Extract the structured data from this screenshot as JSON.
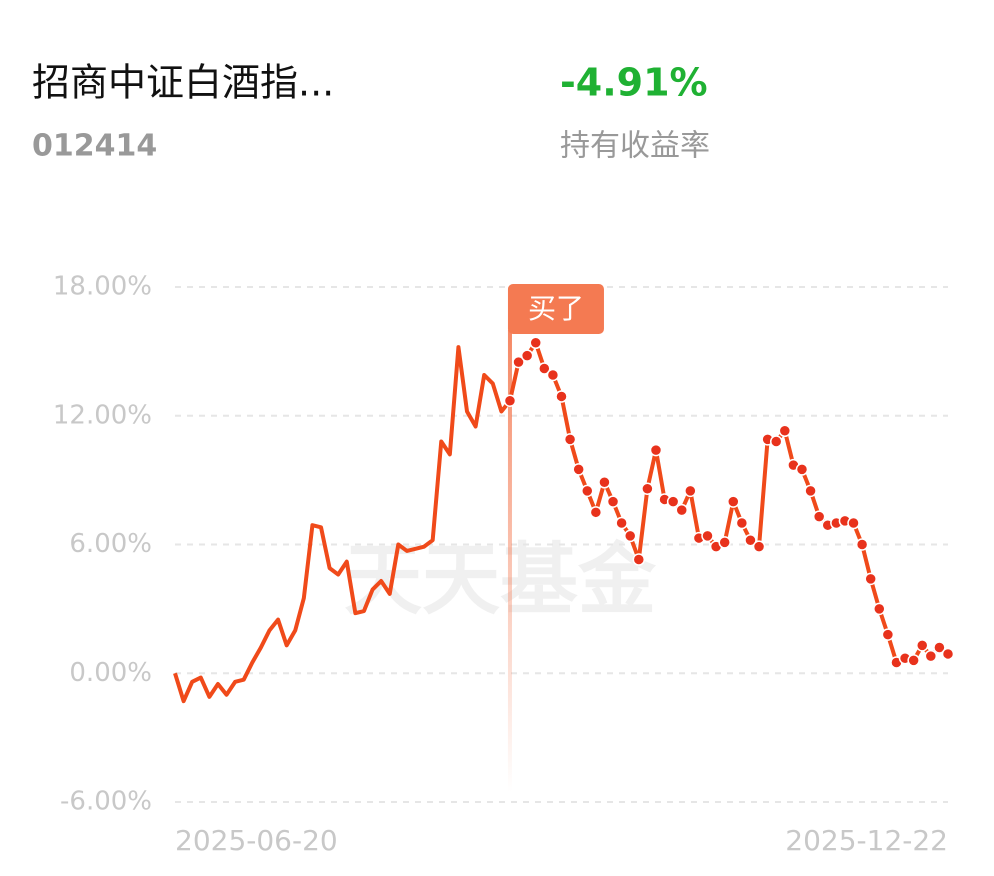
{
  "header": {
    "name": "招商中证白酒指...",
    "code": "012414",
    "return": "-4.91%",
    "return_label": "持有收益率"
  },
  "chart_data": {
    "type": "line",
    "watermark": "天天基金",
    "categories": [
      "2025-06-20",
      null,
      null,
      null,
      null,
      null,
      null,
      null,
      null,
      null,
      null,
      null,
      null,
      null,
      null,
      null,
      null,
      null,
      null,
      null,
      null,
      null,
      null,
      null,
      null,
      null,
      null,
      null,
      null,
      null,
      null,
      null,
      null,
      null,
      null,
      null,
      null,
      null,
      null,
      null,
      null,
      null,
      null,
      null,
      null,
      null,
      null,
      null,
      null,
      null,
      null,
      null,
      null,
      null,
      null,
      null,
      null,
      null,
      null,
      null,
      null,
      null,
      null,
      null,
      null,
      null,
      null,
      null,
      null,
      null,
      null,
      null,
      null,
      null,
      null,
      null,
      null,
      null,
      null,
      null,
      null,
      null,
      null,
      null,
      null,
      null,
      null,
      null,
      null,
      null,
      "2025-12-22"
    ],
    "series": [
      {
        "color": "#f04a1a",
        "values": [
          0,
          -1.3,
          -0.4,
          -0.2,
          -1.1,
          -0.5,
          -1.0,
          -0.4,
          -0.3,
          0.5,
          1.2,
          2.0,
          2.5,
          1.3,
          2.0,
          3.5,
          6.9,
          6.8,
          4.9,
          4.6,
          5.2,
          2.8,
          2.9,
          3.9,
          4.3,
          3.7,
          6.0,
          5.7,
          5.8,
          5.9,
          6.2,
          10.8,
          10.2,
          15.2,
          12.2,
          11.5,
          13.9,
          13.5,
          12.2,
          12.7,
          14.5,
          14.8,
          15.4,
          14.2,
          13.9,
          12.9,
          10.9,
          9.5,
          8.5,
          7.5,
          8.9,
          8.0,
          7.0,
          6.4,
          5.3,
          8.6,
          10.4,
          8.1,
          8.0,
          7.6,
          8.5,
          6.3,
          6.4,
          5.9,
          6.1,
          8.0,
          7.0,
          6.2,
          5.9,
          10.9,
          10.8,
          11.3,
          9.7,
          9.5,
          8.5,
          7.3,
          6.9,
          7.0,
          7.1,
          7.0,
          6.0,
          4.4,
          3.0,
          1.8,
          0.5,
          0.7,
          0.6,
          1.3,
          0.8,
          1.2,
          0.9
        ]
      }
    ],
    "annotations": [
      {
        "text": "买了",
        "index": 39
      }
    ],
    "ylim": [
      -6,
      18
    ],
    "yticks": [
      {
        "value": 18,
        "label": "18.00%"
      },
      {
        "value": 12,
        "label": "12.00%"
      },
      {
        "value": 6,
        "label": "6.00%"
      },
      {
        "value": 0,
        "label": "0.00%"
      },
      {
        "value": -6,
        "label": "-6.00%"
      }
    ],
    "grid": true
  }
}
